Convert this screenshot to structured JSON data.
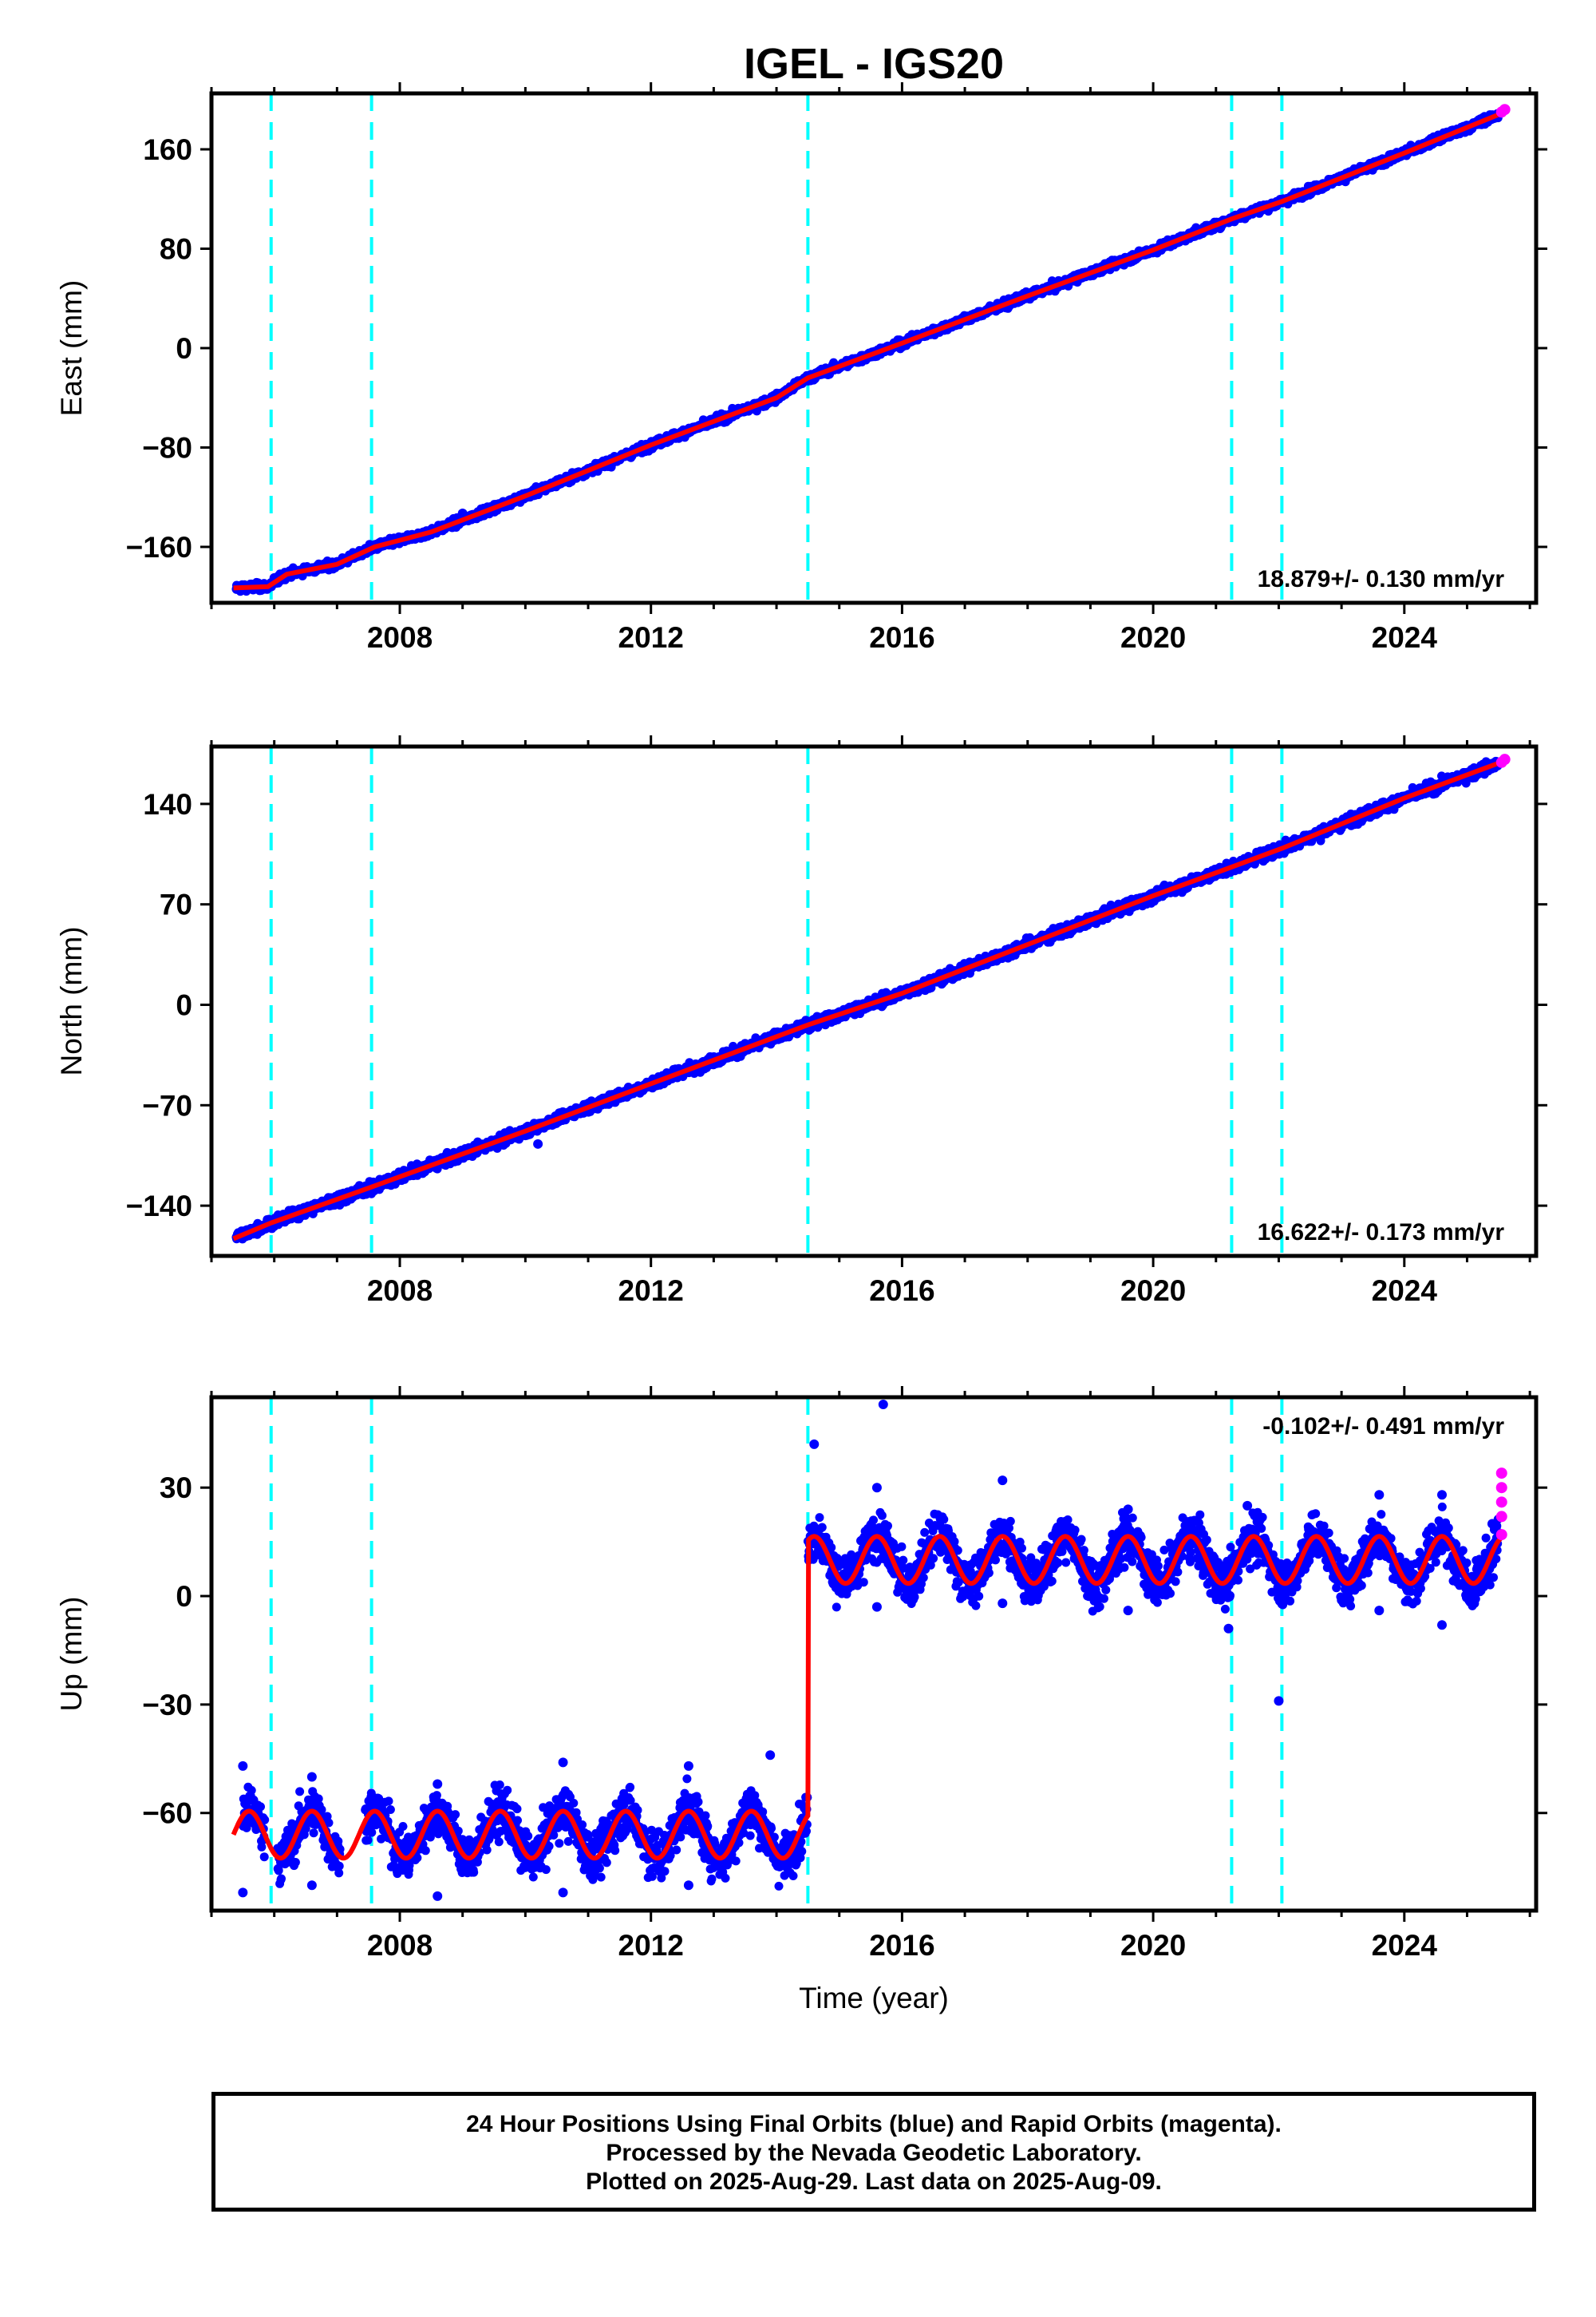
{
  "title": "IGEL - IGS20",
  "colors": {
    "final_orbits": "#0000ff",
    "rapid_orbits": "#ff00ff",
    "model": "#ff0000",
    "equipment_change": "#00ffff",
    "frame": "#000000"
  },
  "caption": {
    "line1": "24 Hour Positions Using Final Orbits (blue) and Rapid Orbits (magenta).",
    "line2": "Processed by the Nevada Geodetic Laboratory.",
    "line3": "Plotted on 2025-Aug-29. Last data on 2025-Aug-09."
  },
  "chart_data": [
    {
      "type": "scatter",
      "component": "east",
      "ylabel": "East (mm)",
      "xlabel": "",
      "xlim": [
        2005.0,
        2026.1
      ],
      "ylim": [
        -205,
        205
      ],
      "xticks": [
        2008,
        2012,
        2016,
        2020,
        2024
      ],
      "yticks": [
        -160,
        -80,
        0,
        80,
        160
      ],
      "rate_text": "18.879+/- 0.130 mm/yr",
      "rate_position": "bottom-right",
      "equipment_changes": [
        2005.95,
        2007.55,
        2014.5,
        2021.25,
        2022.05
      ],
      "model_points": [
        [
          2005.35,
          -193
        ],
        [
          2005.9,
          -192
        ],
        [
          2006.2,
          -182
        ],
        [
          2007.0,
          -174
        ],
        [
          2007.6,
          -160
        ],
        [
          2008.5,
          -148
        ],
        [
          2010.0,
          -119
        ],
        [
          2012.0,
          -78
        ],
        [
          2014.0,
          -40
        ],
        [
          2014.5,
          -24
        ],
        [
          2016.0,
          4
        ],
        [
          2018.0,
          42
        ],
        [
          2020.0,
          79
        ],
        [
          2021.25,
          104
        ],
        [
          2022.05,
          118
        ],
        [
          2024.0,
          157
        ],
        [
          2025.6,
          190
        ]
      ],
      "final_orbit_points": [
        [
          2005.4,
          -194
        ],
        [
          2006.0,
          -185
        ],
        [
          2007.0,
          -172
        ],
        [
          2008.0,
          -155
        ],
        [
          2009.0,
          -133
        ],
        [
          2010.0,
          -117
        ],
        [
          2011.0,
          -97
        ],
        [
          2012.0,
          -77
        ],
        [
          2013.0,
          -57
        ],
        [
          2014.0,
          -38
        ],
        [
          2015.0,
          -16
        ],
        [
          2016.0,
          2
        ],
        [
          2017.0,
          22
        ],
        [
          2018.0,
          41
        ],
        [
          2019.0,
          60
        ],
        [
          2020.0,
          79
        ],
        [
          2021.0,
          98
        ],
        [
          2022.0,
          118
        ],
        [
          2023.0,
          137
        ],
        [
          2024.0,
          157
        ],
        [
          2025.0,
          176
        ],
        [
          2025.5,
          188
        ]
      ],
      "rapid_orbit_points": [
        [
          2025.55,
          190
        ],
        [
          2025.6,
          192
        ]
      ]
    },
    {
      "type": "scatter",
      "component": "north",
      "ylabel": "North (mm)",
      "xlabel": "",
      "xlim": [
        2005.0,
        2026.1
      ],
      "ylim": [
        -175,
        180
      ],
      "xticks": [
        2008,
        2012,
        2016,
        2020,
        2024
      ],
      "yticks": [
        -140,
        -70,
        0,
        70,
        140
      ],
      "rate_text": "16.622+/- 0.173 mm/yr",
      "rate_position": "bottom-right",
      "equipment_changes": [
        2005.95,
        2007.55,
        2014.5,
        2021.25,
        2022.05
      ],
      "model_points": [
        [
          2005.35,
          -163
        ],
        [
          2005.95,
          -152
        ],
        [
          2007.55,
          -127
        ],
        [
          2010.0,
          -88
        ],
        [
          2012.0,
          -55
        ],
        [
          2014.5,
          -14
        ],
        [
          2016.0,
          8
        ],
        [
          2018.0,
          42
        ],
        [
          2020.0,
          76
        ],
        [
          2021.25,
          96
        ],
        [
          2022.05,
          109
        ],
        [
          2024.0,
          144
        ],
        [
          2025.6,
          170
        ]
      ],
      "final_orbit_points": [
        [
          2005.4,
          -162
        ],
        [
          2006.0,
          -150
        ],
        [
          2007.0,
          -135
        ],
        [
          2008.0,
          -120
        ],
        [
          2009.0,
          -104
        ],
        [
          2010.0,
          -88
        ],
        [
          2011.0,
          -70
        ],
        [
          2012.0,
          -55
        ],
        [
          2013.0,
          -38
        ],
        [
          2014.0,
          -22
        ],
        [
          2015.0,
          -5
        ],
        [
          2016.0,
          10
        ],
        [
          2017.0,
          26
        ],
        [
          2018.0,
          42
        ],
        [
          2019.0,
          59
        ],
        [
          2020.0,
          76
        ],
        [
          2021.0,
          93
        ],
        [
          2022.0,
          109
        ],
        [
          2023.0,
          126
        ],
        [
          2024.0,
          143
        ],
        [
          2025.0,
          160
        ],
        [
          2025.5,
          168
        ],
        [
          2010.2,
          -97
        ]
      ],
      "rapid_orbit_points": [
        [
          2025.55,
          169
        ],
        [
          2025.6,
          171
        ]
      ]
    },
    {
      "type": "scatter",
      "component": "up",
      "ylabel": "Up (mm)",
      "xlabel": "Time (year)",
      "xlim": [
        2005.0,
        2026.1
      ],
      "ylim": [
        -87,
        55
      ],
      "xticks": [
        2008,
        2012,
        2016,
        2020,
        2024
      ],
      "yticks": [
        -60,
        -30,
        0,
        30
      ],
      "rate_text": "-0.102+/- 0.491 mm/yr",
      "rate_position": "top-right",
      "equipment_changes": [
        2005.95,
        2007.55,
        2014.5,
        2021.25,
        2022.05
      ],
      "offset_epoch": 2014.5,
      "before_offset_mean": -66,
      "after_offset_mean": 10,
      "seasonal_amplitude": 6.5,
      "seasonal_phase_year_fraction": 0.6,
      "final_orbit_points": [
        [
          2005.5,
          -47
        ],
        [
          2005.5,
          -82
        ],
        [
          2006.6,
          -50
        ],
        [
          2006.6,
          -80
        ],
        [
          2008.6,
          -52
        ],
        [
          2008.6,
          -83
        ],
        [
          2010.6,
          -46
        ],
        [
          2010.6,
          -82
        ],
        [
          2012.6,
          -47
        ],
        [
          2012.6,
          -80
        ],
        [
          2013.9,
          -44
        ],
        [
          2014.6,
          42
        ],
        [
          2015.7,
          53
        ],
        [
          2015.6,
          30
        ],
        [
          2015.6,
          -3
        ],
        [
          2017.6,
          32
        ],
        [
          2017.6,
          -2
        ],
        [
          2019.6,
          24
        ],
        [
          2019.6,
          -4
        ],
        [
          2021.5,
          25
        ],
        [
          2021.2,
          -9
        ],
        [
          2022.0,
          -29
        ],
        [
          2023.6,
          28
        ],
        [
          2023.6,
          -4
        ],
        [
          2024.6,
          28
        ],
        [
          2024.6,
          -8
        ],
        [
          2025.4,
          20
        ]
      ],
      "rapid_orbit_points": [
        [
          2025.55,
          34
        ],
        [
          2025.55,
          30
        ],
        [
          2025.55,
          26
        ],
        [
          2025.55,
          22
        ],
        [
          2025.55,
          17
        ]
      ]
    }
  ]
}
